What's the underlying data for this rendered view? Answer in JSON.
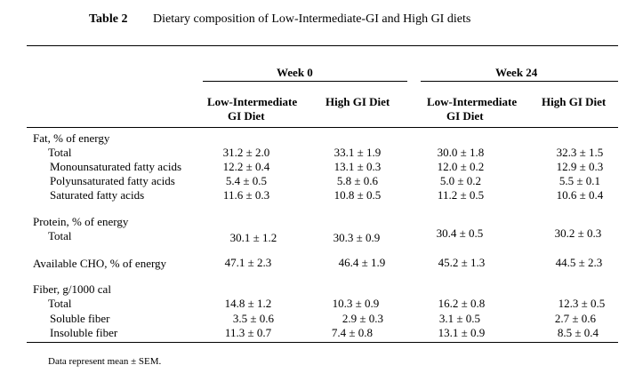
{
  "caption": {
    "label": "Table 2",
    "title": "Dietary composition of Low-Intermediate-GI and High GI diets"
  },
  "header": {
    "week0": "Week 0",
    "week24": "Week 24",
    "col_low_line1": "Low-Intermediate",
    "col_low_line2": "GI Diet",
    "col_high": "High GI Diet"
  },
  "rows": [
    {
      "label": "Fat, % of energy",
      "values": [
        "",
        "",
        "",
        ""
      ]
    },
    {
      "label": "Total",
      "values": [
        "31.2 ± 2.0",
        "33.1 ± 1.9",
        "30.0 ± 1.8",
        "32.3 ± 1.5"
      ]
    },
    {
      "label": "Monounsaturated fatty acids",
      "values": [
        "12.2 ± 0.4",
        "13.1 ± 0.3",
        "12.0 ± 0.2",
        "12.9 ± 0.3"
      ]
    },
    {
      "label": "Polyunsaturated fatty acids",
      "values": [
        "5.4 ± 0.5",
        "5.8 ± 0.6",
        "5.0 ± 0.2",
        "5.5 ± 0.1"
      ]
    },
    {
      "label": "Saturated fatty acids",
      "values": [
        "11.6 ± 0.3",
        "10.8 ± 0.5",
        "11.2 ± 0.5",
        "10.6 ± 0.4"
      ]
    },
    {
      "label": "Protein, % of energy",
      "values": [
        "",
        "",
        "",
        ""
      ]
    },
    {
      "label": "Total",
      "values": [
        "30.1 ± 1.2",
        "30.3 ± 0.9",
        "30.4 ± 0.5",
        "30.2 ± 0.3"
      ]
    },
    {
      "label": "Available CHO, % of energy",
      "values": [
        "47.1 ± 2.3",
        "46.4 ± 1.9",
        "45.2 ± 1.3",
        "44.5 ± 2.3"
      ]
    },
    {
      "label": "Fiber, g/1000 cal",
      "values": [
        "",
        "",
        "",
        ""
      ]
    },
    {
      "label": "Total",
      "values": [
        "14.8 ± 1.2",
        "10.3 ± 0.9",
        "16.2 ± 0.8",
        "12.3 ± 0.5"
      ]
    },
    {
      "label": "Soluble fiber",
      "values": [
        "3.5 ± 0.6",
        "2.9 ± 0.3",
        "3.1 ± 0.5",
        "2.7 ± 0.6"
      ]
    },
    {
      "label": "Insoluble fiber",
      "values": [
        "11.3 ± 0.7",
        "7.4 ± 0.8",
        "13.1 ± 0.9",
        "8.5 ± 0.4"
      ]
    }
  ],
  "footnote": "Data represent mean ± SEM."
}
